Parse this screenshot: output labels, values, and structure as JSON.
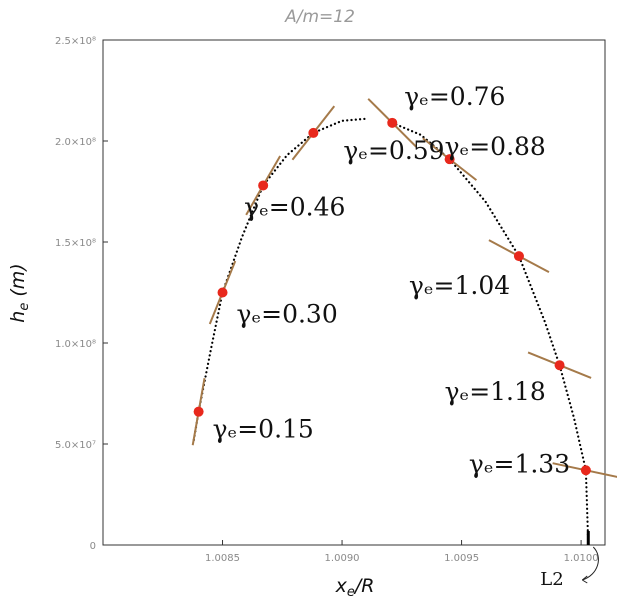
{
  "chart_data": {
    "type": "scatter",
    "title": "A/m=12",
    "xlabel": "x_e/R",
    "ylabel": "h_e (m)",
    "xlim": [
      1.008,
      1.0101
    ],
    "ylim": [
      0,
      250000000
    ],
    "x_ticks": [
      {
        "value": 1.0085,
        "label": "1.0085"
      },
      {
        "value": 1.009,
        "label": "1.0090"
      },
      {
        "value": 1.0095,
        "label": "1.0095"
      },
      {
        "value": 1.01,
        "label": "1.0100"
      }
    ],
    "y_ticks": [
      {
        "value": 0,
        "label": "0"
      },
      {
        "value": 50000000,
        "label": "5.0×10⁷"
      },
      {
        "value": 100000000,
        "label": "1.0×10⁸"
      },
      {
        "value": 150000000,
        "label": "1.5×10⁸"
      },
      {
        "value": 200000000,
        "label": "2.0×10⁸"
      },
      {
        "value": 250000000,
        "label": "2.5×10⁸"
      }
    ],
    "grid": false,
    "trajectory": {
      "x": [
        1.00838,
        1.0084,
        1.00845,
        1.0085,
        1.00858,
        1.00867,
        1.00877,
        1.00888,
        1.009,
        1.0091,
        1.00921,
        1.00933,
        1.00945,
        1.0096,
        1.00974,
        1.00985,
        1.00991,
        1.00997,
        1.01002,
        1.01003
      ],
      "y": [
        52000000,
        66000000,
        96000000,
        125000000,
        152000000,
        178000000,
        193000000,
        204000000,
        210000000,
        211000000,
        209000000,
        203000000,
        191000000,
        170000000,
        143000000,
        110000000,
        89000000,
        63000000,
        37000000,
        0
      ]
    },
    "gap_x": [
      1.00913,
      1.00919
    ],
    "points": [
      {
        "x": 1.0084,
        "y": 66000000,
        "label": "γₑ=0.15",
        "tangent_slope_deg": -80
      },
      {
        "x": 1.0085,
        "y": 125000000,
        "label": "γₑ=0.30",
        "tangent_slope_deg": -68
      },
      {
        "x": 1.00867,
        "y": 178000000,
        "label": "γₑ=0.46",
        "tangent_slope_deg": -60
      },
      {
        "x": 1.00888,
        "y": 204000000,
        "label": "γₑ=0.59",
        "tangent_slope_deg": -52
      },
      {
        "x": 1.00921,
        "y": 209000000,
        "label": "γₑ=0.76",
        "tangent_slope_deg": 45
      },
      {
        "x": 1.00945,
        "y": 191000000,
        "label": "γₑ=0.88",
        "tangent_slope_deg": 38
      },
      {
        "x": 1.00974,
        "y": 143000000,
        "label": "γₑ=1.04",
        "tangent_slope_deg": 28
      },
      {
        "x": 1.00991,
        "y": 89000000,
        "label": "γₑ=1.18",
        "tangent_slope_deg": 22
      },
      {
        "x": 1.01002,
        "y": 37000000,
        "label": "γₑ=1.33",
        "tangent_slope_deg": 12
      }
    ],
    "annotation": {
      "label": "L2",
      "x": 1.01003,
      "y": 0
    },
    "colors": {
      "trajectory": "#000000",
      "points": "#e8281c",
      "tangents": "#a57a4a",
      "frame": "#333333"
    }
  }
}
